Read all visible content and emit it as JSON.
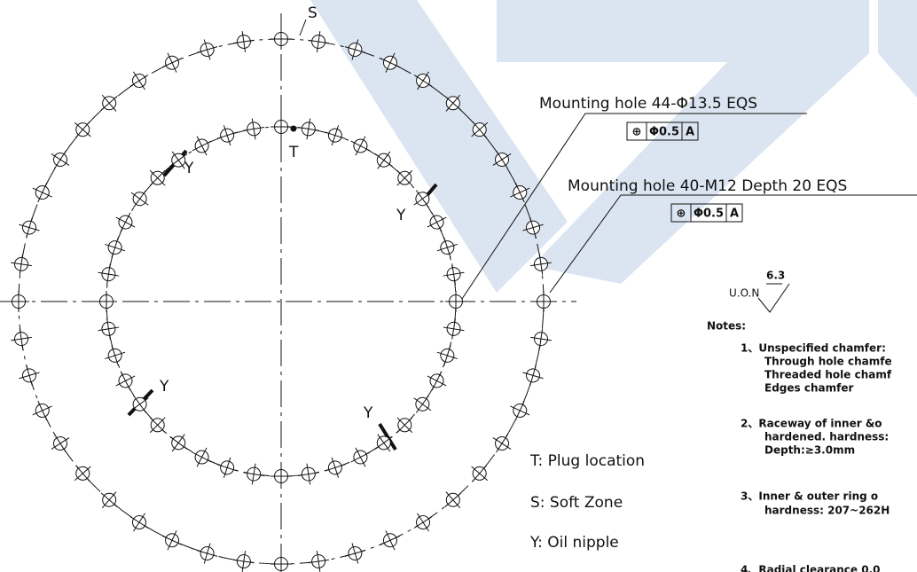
{
  "markers": {
    "soft_zone": "S",
    "plug": "T",
    "oil_nipples": [
      "Y",
      "Y",
      "Y",
      "Y"
    ]
  },
  "callouts": [
    {
      "label": "Mounting hole 44-Φ13.5 EQS",
      "frame": [
        "⊕",
        "Φ0.5",
        "A"
      ]
    },
    {
      "label": "Mounting hole 40-M12 Depth 20 EQS",
      "frame": [
        "⊕",
        "Φ0.5",
        "A"
      ]
    }
  ],
  "roughness": {
    "note": "U.O.N",
    "value": "6.3"
  },
  "legend": [
    "T: Plug location",
    "S: Soft Zone",
    "Y: Oil nipple"
  ],
  "notes": {
    "title": "Notes:",
    "lines": [
      "1、Unspecified chamfer:",
      "Through hole chamfe",
      "Threaded hole chamf",
      "Edges chamfer",
      "2、Raceway of inner &o",
      "hardened. hardness:",
      "Depth:≥3.0mm",
      "3、Inner & outer ring o",
      "hardness: 207~262H",
      "4、Radial clearance 0.0"
    ]
  }
}
